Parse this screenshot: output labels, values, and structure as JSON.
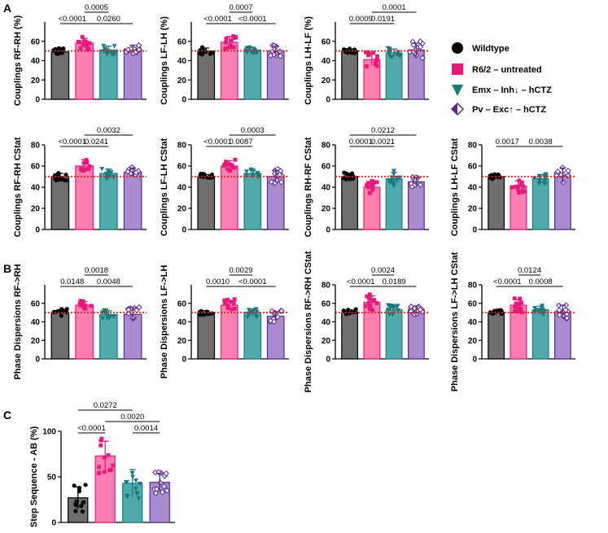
{
  "panel_labels": [
    "A",
    "B",
    "C"
  ],
  "legend": {
    "items": [
      {
        "label": "Wildtype",
        "color": "#000000",
        "marker": "circle"
      },
      {
        "label": "R6/2 – untreated",
        "color": "#e8197a",
        "marker": "square"
      },
      {
        "label": "Emx – Inh↓ – hCTZ",
        "color": "#1a7a7e",
        "marker": "triangle-down"
      },
      {
        "label": "Pv – Exc↑ – hCTZ",
        "color": "#5a2a8c",
        "marker": "diamond"
      }
    ]
  },
  "chart_data": [
    {
      "type": "bar",
      "panel": "A",
      "ylabel": "Couplings RF-RH (%)",
      "ylim": [
        0,
        80
      ],
      "yticks": [
        0,
        20,
        40,
        60
      ],
      "categories": [
        "Wildtype",
        "R6/2 – untreated",
        "Emx – Inh – hCTZ",
        "Pv – Exc – hCTZ"
      ],
      "values": [
        49,
        58,
        51,
        52
      ],
      "sd": [
        3,
        5,
        4,
        4
      ],
      "reference_line": 50,
      "comparisons": [
        {
          "a": 0,
          "b": 1,
          "p": "<0.0001",
          "level": 1
        },
        {
          "a": 1,
          "b": 3,
          "p": "0.0260",
          "level": 1
        },
        {
          "a": 1,
          "b": 2,
          "p": "0.0005",
          "level": 2
        }
      ]
    },
    {
      "type": "bar",
      "panel": "A",
      "ylabel": "Couplings LF-LH (%)",
      "ylim": [
        0,
        80
      ],
      "yticks": [
        0,
        20,
        40,
        60
      ],
      "categories": [
        "Wildtype",
        "R6/2 – untreated",
        "Emx – Inh – hCTZ",
        "Pv – Exc – hCTZ"
      ],
      "values": [
        50,
        59,
        51,
        50
      ],
      "sd": [
        3,
        6,
        3,
        5
      ],
      "reference_line": 50,
      "comparisons": [
        {
          "a": 0,
          "b": 1,
          "p": "<0.0001",
          "level": 1
        },
        {
          "a": 1,
          "b": 3,
          "p": "<0.0001",
          "level": 1
        },
        {
          "a": 1,
          "b": 2,
          "p": "0.0007",
          "level": 2
        }
      ]
    },
    {
      "type": "bar",
      "panel": "A",
      "ylabel": "Couplings LH-LF (%)",
      "ylim": [
        0,
        80
      ],
      "yticks": [
        0,
        20,
        40,
        60
      ],
      "categories": [
        "Wildtype",
        "R6/2 – untreated",
        "Emx – Inh – hCTZ",
        "Pv – Exc – hCTZ"
      ],
      "values": [
        50,
        41,
        48,
        51
      ],
      "sd": [
        2,
        6,
        4,
        7
      ],
      "reference_line": 50,
      "comparisons": [
        {
          "a": 0,
          "b": 1,
          "p": "0.0009",
          "level": 1
        },
        {
          "a": 1,
          "b": 2,
          "p": "0.0191",
          "level": 1
        },
        {
          "a": 1,
          "b": 3,
          "p": "0.0001",
          "level": 2
        }
      ]
    },
    {
      "type": "bar",
      "panel": "A",
      "ylabel": "Couplings RF-RH CStat",
      "ylim": [
        0,
        80
      ],
      "yticks": [
        0,
        20,
        40,
        60,
        80
      ],
      "categories": [
        "Wildtype",
        "R6/2 – untreated",
        "Emx – Inh – hCTZ",
        "Pv – Exc – hCTZ"
      ],
      "values": [
        50,
        60,
        53,
        54
      ],
      "sd": [
        3,
        6,
        4,
        4
      ],
      "reference_line": 50,
      "comparisons": [
        {
          "a": 0,
          "b": 1,
          "p": "<0.0001",
          "level": 1
        },
        {
          "a": 1,
          "b": 2,
          "p": "0.0241",
          "level": 1
        },
        {
          "a": 1,
          "b": 3,
          "p": "0.0032",
          "level": 2
        }
      ]
    },
    {
      "type": "bar",
      "panel": "A",
      "ylabel": "Couplings LF-LH CStat",
      "ylim": [
        0,
        80
      ],
      "yticks": [
        0,
        20,
        40,
        60,
        80
      ],
      "categories": [
        "Wildtype",
        "R6/2 – untreated",
        "Emx – Inh – hCTZ",
        "Pv – Exc – hCTZ"
      ],
      "values": [
        50,
        60,
        53,
        50
      ],
      "sd": [
        2,
        5,
        3,
        6
      ],
      "reference_line": 50,
      "comparisons": [
        {
          "a": 0,
          "b": 1,
          "p": "<0.0001",
          "level": 1
        },
        {
          "a": 1,
          "b": 2,
          "p": "0.0087",
          "level": 1
        },
        {
          "a": 1,
          "b": 3,
          "p": "0.0003",
          "level": 2
        }
      ]
    },
    {
      "type": "bar",
      "panel": "A",
      "ylabel": "Couplings RH-RF CStat",
      "ylim": [
        0,
        80
      ],
      "yticks": [
        0,
        20,
        40,
        60,
        80
      ],
      "categories": [
        "Wildtype",
        "R6/2 – untreated",
        "Emx – Inh – hCTZ",
        "Pv – Exc – hCTZ"
      ],
      "values": [
        50,
        40,
        48,
        45
      ],
      "sd": [
        3,
        5,
        6,
        4
      ],
      "reference_line": 50,
      "comparisons": [
        {
          "a": 0,
          "b": 1,
          "p": "0.0001",
          "level": 1
        },
        {
          "a": 1,
          "b": 2,
          "p": "0.0021",
          "level": 1
        },
        {
          "a": 0,
          "b": 3,
          "p": "0.0212",
          "level": 2
        }
      ]
    },
    {
      "type": "bar",
      "panel": "A",
      "ylabel": "Couplings LH-LF CStat",
      "ylim": [
        0,
        80
      ],
      "yticks": [
        0,
        20,
        40,
        60,
        80
      ],
      "categories": [
        "Wildtype",
        "R6/2 – untreated",
        "Emx – Inh – hCTZ",
        "Pv – Exc – hCTZ"
      ],
      "values": [
        50,
        41,
        48,
        51
      ],
      "sd": [
        2,
        5,
        4,
        7
      ],
      "reference_line": 50,
      "comparisons": [
        {
          "a": 0,
          "b": 1,
          "p": "0.0017",
          "level": 1
        },
        {
          "a": 1,
          "b": 3,
          "p": "0.0038",
          "level": 1
        }
      ]
    },
    {
      "type": "bar",
      "panel": "B",
      "ylabel": "Phase Dispersions RF->RH",
      "ylim": [
        0,
        80
      ],
      "yticks": [
        0,
        20,
        40,
        60
      ],
      "categories": [
        "Wildtype",
        "R6/2 – untreated",
        "Emx – Inh – hCTZ",
        "Pv – Exc – hCTZ"
      ],
      "values": [
        50,
        58,
        48,
        48
      ],
      "sd": [
        3,
        4,
        4,
        7
      ],
      "reference_line": 50,
      "comparisons": [
        {
          "a": 0,
          "b": 1,
          "p": "0.0148",
          "level": 1
        },
        {
          "a": 1,
          "b": 3,
          "p": "0.0048",
          "level": 1
        },
        {
          "a": 1,
          "b": 2,
          "p": "0.0018",
          "level": 2
        }
      ]
    },
    {
      "type": "bar",
      "panel": "B",
      "ylabel": "Phase Dispersions LF->LH",
      "ylim": [
        0,
        80
      ],
      "yticks": [
        0,
        20,
        40,
        60
      ],
      "categories": [
        "Wildtype",
        "R6/2 – untreated",
        "Emx – Inh – hCTZ",
        "Pv – Exc – hCTZ"
      ],
      "values": [
        50,
        58,
        50,
        46
      ],
      "sd": [
        2,
        5,
        4,
        5
      ],
      "reference_line": 50,
      "comparisons": [
        {
          "a": 0,
          "b": 1,
          "p": "0.0010",
          "level": 1
        },
        {
          "a": 1,
          "b": 3,
          "p": "<0.0001",
          "level": 1
        },
        {
          "a": 1,
          "b": 2,
          "p": "0.0029",
          "level": 2
        }
      ]
    },
    {
      "type": "bar",
      "panel": "B",
      "ylabel": "Phase Dispersions RF->RH CStat",
      "ylim": [
        0,
        80
      ],
      "yticks": [
        0,
        20,
        40,
        60,
        80
      ],
      "categories": [
        "Wildtype",
        "R6/2 – untreated",
        "Emx – Inh – hCTZ",
        "Pv – Exc – hCTZ"
      ],
      "values": [
        50,
        61,
        53,
        53
      ],
      "sd": [
        3,
        7,
        4,
        4
      ],
      "reference_line": 50,
      "comparisons": [
        {
          "a": 0,
          "b": 1,
          "p": "<0.0001",
          "level": 1
        },
        {
          "a": 1,
          "b": 3,
          "p": "0.0189",
          "level": 1
        },
        {
          "a": 1,
          "b": 2,
          "p": "0.0024",
          "level": 2
        }
      ]
    },
    {
      "type": "bar",
      "panel": "B",
      "ylabel": "Phase Dispersions LF->LH CStat",
      "ylim": [
        0,
        80
      ],
      "yticks": [
        0,
        20,
        40,
        60,
        80
      ],
      "categories": [
        "Wildtype",
        "R6/2 – untreated",
        "Emx – Inh – hCTZ",
        "Pv – Exc – hCTZ"
      ],
      "values": [
        50,
        58,
        53,
        51
      ],
      "sd": [
        2,
        6,
        4,
        7
      ],
      "reference_line": 50,
      "comparisons": [
        {
          "a": 0,
          "b": 1,
          "p": "<0.0001",
          "level": 1
        },
        {
          "a": 1,
          "b": 3,
          "p": "0.0008",
          "level": 1
        },
        {
          "a": 1,
          "b": 2,
          "p": "0.0124",
          "level": 2
        }
      ]
    },
    {
      "type": "bar",
      "panel": "C",
      "ylabel": "Step Sequence - AB (%)",
      "ylim": [
        0,
        100
      ],
      "yticks": [
        0,
        50,
        100
      ],
      "categories": [
        "Wildtype",
        "R6/2 – untreated",
        "Emx – Inh – hCTZ",
        "Pv – Exc – hCTZ"
      ],
      "values": [
        27,
        73,
        43,
        44
      ],
      "sd": [
        12,
        16,
        15,
        10
      ],
      "reference_line": null,
      "comparisons": [
        {
          "a": 0,
          "b": 1,
          "p": "<0.0001",
          "level": 1
        },
        {
          "a": 2,
          "b": 3,
          "p": "0.0014",
          "level": 1
        },
        {
          "a": 1,
          "b": 3,
          "p": "0.0020",
          "level": 2
        },
        {
          "a": 0,
          "b": 2,
          "p": "0.0272",
          "level": 3
        }
      ]
    }
  ],
  "colors": {
    "bars": [
      "#6e6e6e",
      "#ff80b0",
      "#4faaab",
      "#a98bd0"
    ],
    "dots": [
      "#000000",
      "#e8197a",
      "#1a7a7e",
      "#5a2a8c"
    ],
    "reference": "#d9211c"
  }
}
